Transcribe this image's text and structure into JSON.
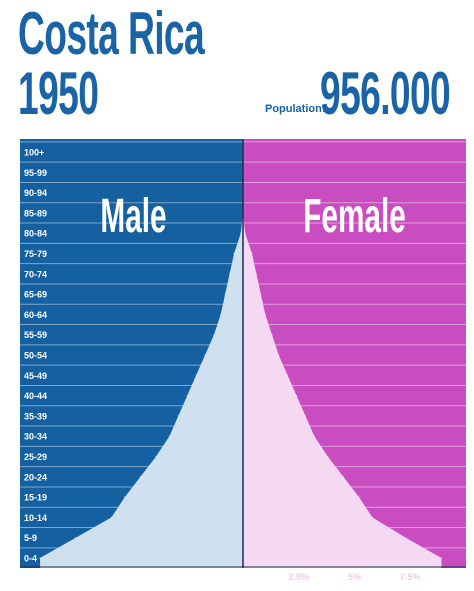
{
  "header": {
    "country": "Costa Rica",
    "year": "1950",
    "population_label": "Population:",
    "population_value": "956.000"
  },
  "colors": {
    "male_bg": "#1560a0",
    "female_bg": "#c94dc0",
    "male_fill": "#cfe1ef",
    "female_fill": "#f5d8f1",
    "title": "#1a63a6",
    "tick_male": "#ffffff",
    "tick_female": "#f1c8ec"
  },
  "chart_data": {
    "type": "area",
    "title": "Costa Rica 1950",
    "male_label": "Male",
    "female_label": "Female",
    "age_groups": [
      "0-4",
      "5-9",
      "10-14",
      "15-19",
      "20-24",
      "25-29",
      "30-34",
      "35-39",
      "40-44",
      "45-49",
      "50-54",
      "55-59",
      "60-64",
      "65-69",
      "70-74",
      "75-79",
      "80-84",
      "85-89",
      "90-94",
      "95-99",
      "100+"
    ],
    "series": [
      {
        "name": "Male",
        "values": [
          9.1,
          7.5,
          5.9,
          5.3,
          4.6,
          3.9,
          3.3,
          2.9,
          2.5,
          2.1,
          1.7,
          1.3,
          1.0,
          0.8,
          0.6,
          0.4,
          0.1,
          0.0,
          0.0,
          0.0,
          0.0
        ]
      },
      {
        "name": "Female",
        "values": [
          8.9,
          7.3,
          5.8,
          5.2,
          4.5,
          3.8,
          3.2,
          2.8,
          2.4,
          2.0,
          1.6,
          1.3,
          1.0,
          0.8,
          0.6,
          0.4,
          0.1,
          0.0,
          0.0,
          0.0,
          0.0
        ]
      }
    ],
    "x_ticks_male": [
      "7.5%",
      "5%",
      "2.5%"
    ],
    "x_ticks_female": [
      "2.5%",
      "5%",
      "7.5%"
    ],
    "x_tick_values": [
      7.5,
      5,
      2.5
    ],
    "xlim": [
      0,
      10
    ]
  }
}
